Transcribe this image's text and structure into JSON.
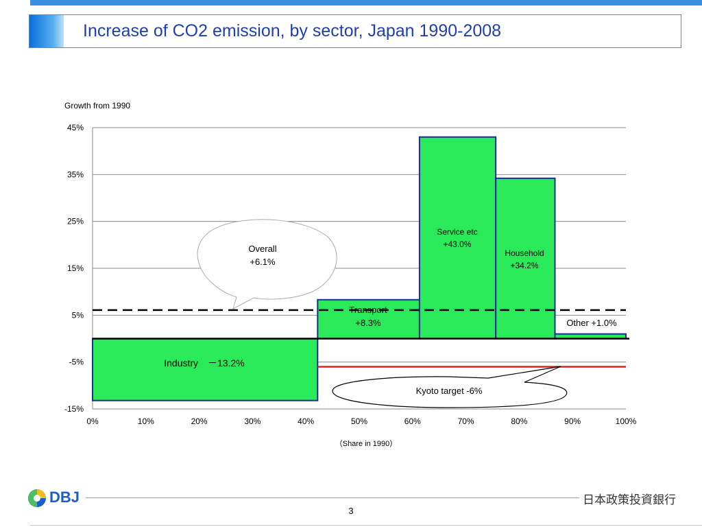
{
  "slide": {
    "title": "Increase of CO2 emission, by sector, Japan 1990-2008",
    "page_number": "3",
    "logo_text": "DBJ",
    "bank_name": "日本政策投資銀行"
  },
  "chart_data": {
    "type": "bar",
    "variable_width": true,
    "ylabel": "Growth from 1990",
    "xlabel": "（Share in 1990）",
    "ylim": [
      -15,
      45
    ],
    "yticks": [
      "45%",
      "35%",
      "25%",
      "15%",
      "5%",
      "-5%",
      "-15%"
    ],
    "ytick_values": [
      45,
      35,
      25,
      15,
      5,
      -5,
      -15
    ],
    "xlim": [
      0,
      100
    ],
    "xticks": [
      "0%",
      "10%",
      "20%",
      "30%",
      "40%",
      "50%",
      "60%",
      "70%",
      "80%",
      "90%",
      "100%"
    ],
    "xtick_values": [
      0,
      10,
      20,
      30,
      40,
      50,
      60,
      70,
      80,
      90,
      100
    ],
    "grid": true,
    "bars": [
      {
        "name": "Industry",
        "label": "Industry　－13.2%",
        "share_start": 0,
        "share_end": 42.2,
        "growth": -13.2
      },
      {
        "name": "Transport",
        "label_line1": "Transport",
        "label_line2": "+8.3%",
        "share_start": 42.2,
        "share_end": 61.3,
        "growth": 8.3
      },
      {
        "name": "Service etc",
        "label_line1": "Service etc",
        "label_line2": "+43.0%",
        "share_start": 61.3,
        "share_end": 75.6,
        "growth": 43.0
      },
      {
        "name": "Household",
        "label_line1": "Household",
        "label_line2": "+34.2%",
        "share_start": 75.6,
        "share_end": 86.7,
        "growth": 34.2
      },
      {
        "name": "Other",
        "label": "Other +1.0%",
        "share_start": 86.7,
        "share_end": 100,
        "growth": 1.0
      }
    ],
    "reference_lines": [
      {
        "name": "Overall",
        "value": 6.1,
        "style": "dashed",
        "color": "#000000"
      },
      {
        "name": "Kyoto target",
        "value": -6.0,
        "style": "solid",
        "color": "#e0201a",
        "x_start": 42.2
      }
    ],
    "callouts": {
      "overall_line1": "Overall",
      "overall_line2": "+6.1%",
      "kyoto": "Kyoto target -6%"
    },
    "colors": {
      "bar_fill": "#2aea5a",
      "bar_stroke": "#1f2a9a"
    }
  }
}
